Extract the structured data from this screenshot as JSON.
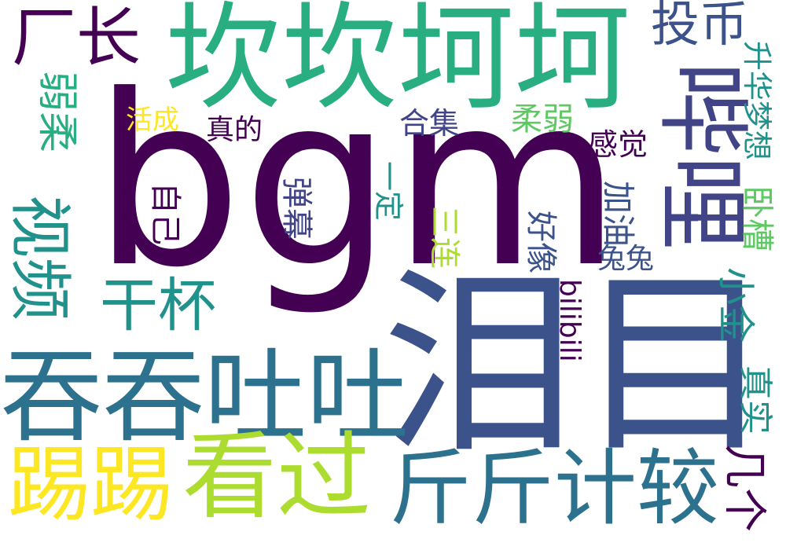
{
  "wordcloud": {
    "colors": {
      "viridis_dark": "#440154",
      "viridis_navy": "#3b528b",
      "viridis_blue": "#414487",
      "viridis_teal": "#2c728e",
      "viridis_cyan": "#21918c",
      "viridis_green": "#28ae80",
      "viridis_lime": "#5ec962",
      "viridis_yg": "#addc30",
      "viridis_yellow": "#fde725"
    },
    "words": [
      {
        "id": "w-bgm",
        "text": "bgm"
      },
      {
        "id": "w-leimu",
        "text": "泪目"
      },
      {
        "id": "w-kankan",
        "text": "坎坎坷坷"
      },
      {
        "id": "w-bili",
        "text": "哔哩"
      },
      {
        "id": "w-tuntun",
        "text": "吞吞吐吐"
      },
      {
        "id": "w-kanguo",
        "text": "看过"
      },
      {
        "id": "w-jinjin",
        "text": "斤斤计较"
      },
      {
        "id": "w-titi",
        "text": "踢踢"
      },
      {
        "id": "w-shipin",
        "text": "视频"
      },
      {
        "id": "w-ruorou",
        "text": "弱柔"
      },
      {
        "id": "w-changzhang",
        "text": "厂长"
      },
      {
        "id": "w-ganbei",
        "text": "干杯"
      },
      {
        "id": "w-toubi",
        "text": "投币"
      },
      {
        "id": "w-xiaojin",
        "text": "小金"
      },
      {
        "id": "w-zhenshi",
        "text": "真实"
      },
      {
        "id": "w-shenghua",
        "text": "升华梦想"
      },
      {
        "id": "w-woca",
        "text": "卧槽"
      },
      {
        "id": "w-jiayou",
        "text": "加油"
      },
      {
        "id": "w-tutu",
        "text": "兔兔"
      },
      {
        "id": "w-bilibili",
        "text": "bilibili"
      },
      {
        "id": "w-haoxiang",
        "text": "好像"
      },
      {
        "id": "w-sanlian",
        "text": "三连"
      },
      {
        "id": "w-yiding",
        "text": "一定"
      },
      {
        "id": "w-danmu",
        "text": "弹幕"
      },
      {
        "id": "w-ziji",
        "text": "自己"
      },
      {
        "id": "w-zhende",
        "text": "真的"
      },
      {
        "id": "w-huocheng",
        "text": "活成"
      },
      {
        "id": "w-heji",
        "text": "合集"
      },
      {
        "id": "w-rouruo",
        "text": "柔弱"
      },
      {
        "id": "w-ganjue",
        "text": "感觉"
      },
      {
        "id": "w-jige",
        "text": "几个"
      }
    ]
  }
}
